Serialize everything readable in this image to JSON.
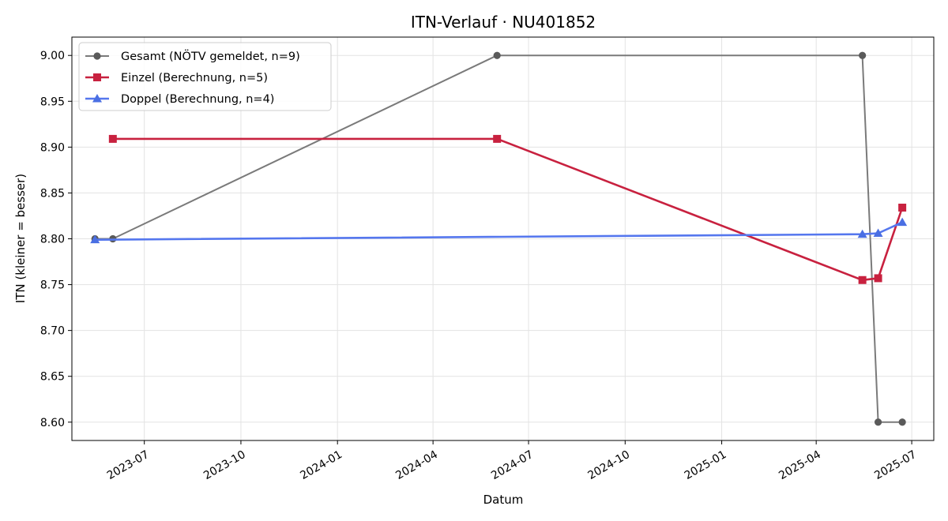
{
  "chart_data": {
    "type": "line",
    "title": "ITN-Verlauf · NU401852",
    "xlabel": "Datum",
    "ylabel": "ITN  (kleiner = besser)",
    "x_ticks": [
      "2023-07",
      "2023-10",
      "2024-01",
      "2024-04",
      "2024-07",
      "2024-10",
      "2025-01",
      "2025-04",
      "2025-07"
    ],
    "y_ticks": [
      "8.60",
      "8.65",
      "8.70",
      "8.75",
      "8.80",
      "8.85",
      "8.90",
      "8.95",
      "9.00"
    ],
    "ylim": [
      8.58,
      9.02
    ],
    "xlim": [
      "2023-04-23",
      "2025-07-22"
    ],
    "grid": true,
    "legend_position": "top-left",
    "series": [
      {
        "name": "Gesamt (NÖTV gemeldet, n=9)",
        "color": "#5a5a5a",
        "line_color": "#7a7a7a",
        "marker": "circle",
        "points": [
          {
            "x": "2023-05-15",
            "y": 8.8
          },
          {
            "x": "2023-06-01",
            "y": 8.8
          },
          {
            "x": "2024-06-01",
            "y": 9.0
          },
          {
            "x": "2025-05-15",
            "y": 9.0
          },
          {
            "x": "2025-05-30",
            "y": 8.6
          },
          {
            "x": "2025-06-22",
            "y": 8.6
          }
        ]
      },
      {
        "name": "Einzel (Berechnung, n=5)",
        "color": "#c8213f",
        "line_color": "#c8213f",
        "marker": "square",
        "points": [
          {
            "x": "2023-06-01",
            "y": 8.909
          },
          {
            "x": "2024-06-01",
            "y": 8.909
          },
          {
            "x": "2025-05-15",
            "y": 8.755
          },
          {
            "x": "2025-05-30",
            "y": 8.757
          },
          {
            "x": "2025-06-22",
            "y": 8.834
          }
        ]
      },
      {
        "name": "Doppel (Berechnung, n=4)",
        "color": "#4a6fe3",
        "line_color": "#5577ee",
        "marker": "triangle",
        "points": [
          {
            "x": "2023-05-15",
            "y": 8.799
          },
          {
            "x": "2025-05-15",
            "y": 8.805
          },
          {
            "x": "2025-05-30",
            "y": 8.806
          },
          {
            "x": "2025-06-22",
            "y": 8.818
          }
        ]
      }
    ]
  }
}
